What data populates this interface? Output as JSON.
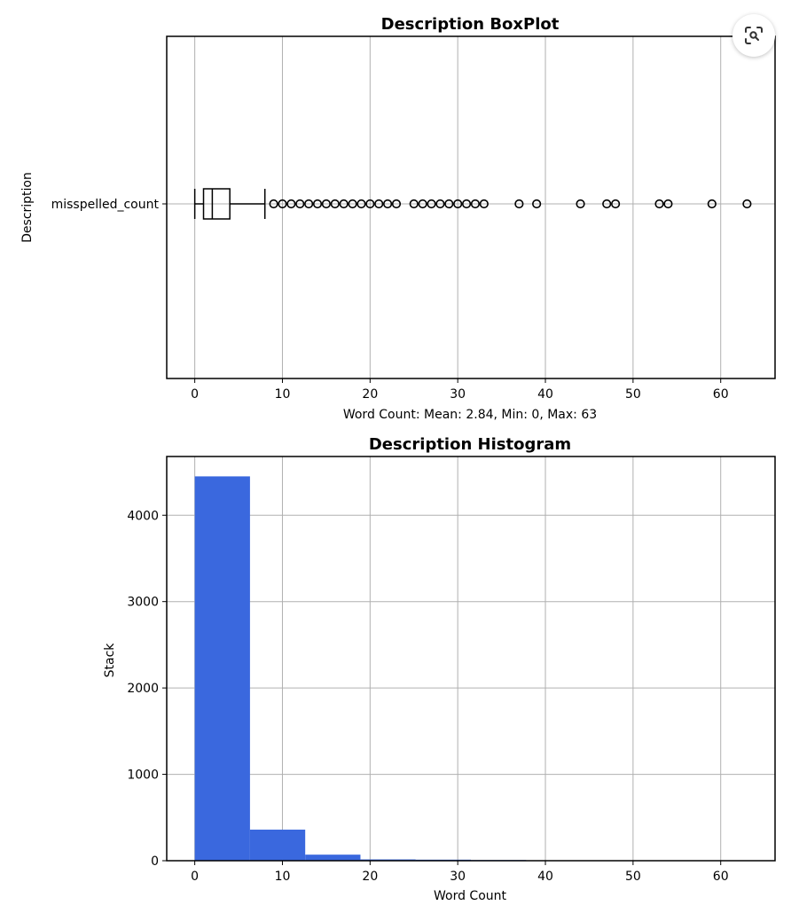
{
  "chart_data": [
    {
      "type": "box",
      "title": "Description BoxPlot",
      "xlabel": "Word Count: Mean: 2.84, Min: 0, Max: 63",
      "ylabel": "Description",
      "categories": [
        "misspelled_count"
      ],
      "xlim": [
        -3.2,
        66.2
      ],
      "xticks": [
        0,
        10,
        20,
        30,
        40,
        50,
        60
      ],
      "grid": true,
      "stats": {
        "whisker_low": 0,
        "q1": 1,
        "median": 2,
        "q3": 4,
        "whisker_high": 8
      },
      "outliers": [
        9,
        10,
        11,
        12,
        13,
        14,
        15,
        16,
        17,
        18,
        19,
        20,
        21,
        22,
        23,
        25,
        26,
        27,
        28,
        29,
        30,
        31,
        32,
        33,
        37,
        39,
        44,
        47,
        48,
        53,
        54,
        59,
        63
      ],
      "color": "#000000"
    },
    {
      "type": "bar",
      "title": "Description Histogram",
      "xlabel": "Word Count",
      "ylabel": "Stack",
      "bin_edges": [
        0,
        6.3,
        12.6,
        18.9,
        25.2,
        31.5,
        37.8,
        44.1,
        50.4,
        56.7,
        63
      ],
      "values": [
        4450,
        360,
        70,
        15,
        12,
        8,
        3,
        2,
        2,
        1
      ],
      "xlim": [
        -3.2,
        66.2
      ],
      "ylim": [
        0,
        4680
      ],
      "xticks": [
        0,
        10,
        20,
        30,
        40,
        50,
        60
      ],
      "yticks": [
        0,
        1000,
        2000,
        3000,
        4000
      ],
      "grid": true,
      "color": "#3a68de"
    }
  ],
  "ui": {
    "lens_icon": "visual-search-icon"
  }
}
